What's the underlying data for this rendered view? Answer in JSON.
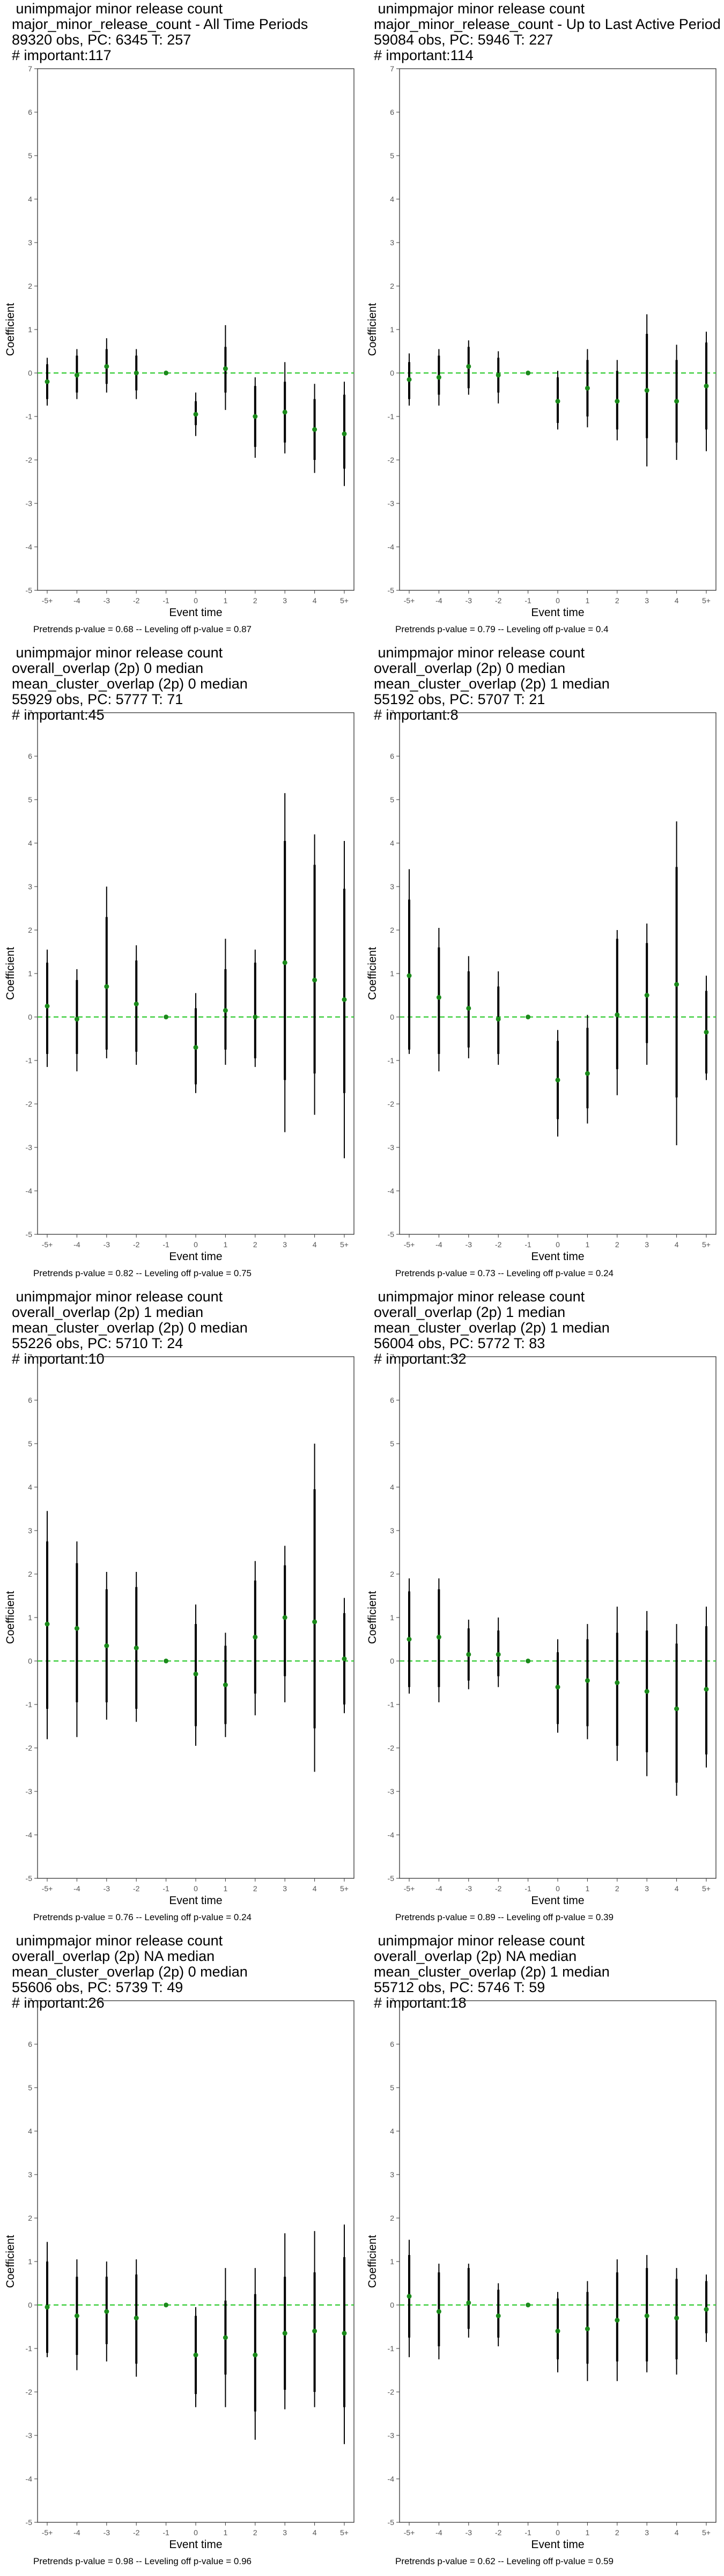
{
  "axis": {
    "xlabel": "Event time",
    "ylabel": "Coefficient",
    "x_ticks": [
      "-5+",
      "-4",
      "-3",
      "-2",
      "-1",
      "0",
      "1",
      "2",
      "3",
      "4",
      "5+"
    ],
    "y_ticks": [
      -5,
      -4,
      -3,
      -2,
      -1,
      0,
      1,
      2,
      3,
      4,
      5,
      6,
      7
    ],
    "ylim": [
      -5,
      7
    ]
  },
  "colors": {
    "point": "#1a8a1a",
    "reference_line": "#33cc33",
    "bar": "#000000",
    "frame": "#333333"
  },
  "chart_data": [
    {
      "type": "scatter",
      "header": [
        " unimpmajor minor release count",
        "major_minor_release_count - All Time Periods",
        "89320 obs, PC: 6345 T: 257",
        "# important:117"
      ],
      "footer": "Pretrends p-value = 0.68 -- Leveling off p-value = 0.87",
      "x": [
        "-5+",
        "-4",
        "-3",
        "-2",
        "-1",
        "0",
        "1",
        "2",
        "3",
        "4",
        "5+"
      ],
      "coef": [
        -0.2,
        -0.05,
        0.15,
        0.0,
        0.0,
        -0.95,
        0.1,
        -1.0,
        -0.9,
        -1.3,
        -1.4
      ],
      "ci90": [
        [
          -0.6,
          0.2
        ],
        [
          -0.45,
          0.4
        ],
        [
          -0.25,
          0.55
        ],
        [
          -0.4,
          0.4
        ],
        [
          0.0,
          0.0
        ],
        [
          -1.2,
          -0.65
        ],
        [
          -0.45,
          0.6
        ],
        [
          -1.7,
          -0.3
        ],
        [
          -1.6,
          -0.2
        ],
        [
          -2.0,
          -0.6
        ],
        [
          -2.2,
          -0.5
        ]
      ],
      "ci95": [
        [
          -0.75,
          0.35
        ],
        [
          -0.6,
          0.55
        ],
        [
          -0.45,
          0.8
        ],
        [
          -0.6,
          0.55
        ],
        [
          0.0,
          0.0
        ],
        [
          -1.45,
          -0.45
        ],
        [
          -0.85,
          1.1
        ],
        [
          -1.95,
          -0.1
        ],
        [
          -1.85,
          0.25
        ],
        [
          -2.3,
          -0.25
        ],
        [
          -2.6,
          -0.2
        ]
      ]
    },
    {
      "type": "scatter",
      "header": [
        " unimpmajor minor release count",
        "major_minor_release_count - Up to Last Active Period",
        "59084 obs, PC: 5946 T: 227",
        "# important:114"
      ],
      "footer": "Pretrends p-value = 0.79 -- Leveling off p-value = 0.4",
      "x": [
        "-5+",
        "-4",
        "-3",
        "-2",
        "-1",
        "0",
        "1",
        "2",
        "3",
        "4",
        "5+"
      ],
      "coef": [
        -0.15,
        -0.1,
        0.15,
        -0.05,
        0.0,
        -0.65,
        -0.35,
        -0.65,
        -0.4,
        -0.65,
        -0.3
      ],
      "ci90": [
        [
          -0.6,
          0.25
        ],
        [
          -0.5,
          0.4
        ],
        [
          -0.35,
          0.6
        ],
        [
          -0.45,
          0.35
        ],
        [
          0.0,
          0.0
        ],
        [
          -1.15,
          -0.1
        ],
        [
          -1.0,
          0.3
        ],
        [
          -1.3,
          0.05
        ],
        [
          -1.5,
          0.9
        ],
        [
          -1.6,
          0.3
        ],
        [
          -1.3,
          0.7
        ]
      ],
      "ci95": [
        [
          -0.75,
          0.45
        ],
        [
          -0.75,
          0.55
        ],
        [
          -0.5,
          0.75
        ],
        [
          -0.7,
          0.5
        ],
        [
          0.0,
          0.0
        ],
        [
          -1.3,
          0.05
        ],
        [
          -1.25,
          0.55
        ],
        [
          -1.55,
          0.3
        ],
        [
          -2.15,
          1.35
        ],
        [
          -2.0,
          0.65
        ],
        [
          -1.8,
          0.95
        ]
      ]
    },
    {
      "type": "scatter",
      "header": [
        " unimpmajor minor release count",
        "overall_overlap (2p) 0 median",
        "mean_cluster_overlap (2p) 0 median",
        "55929 obs, PC: 5777 T: 71",
        "# important:45"
      ],
      "footer": "Pretrends p-value = 0.82 -- Leveling off p-value = 0.75",
      "x": [
        "-5+",
        "-4",
        "-3",
        "-2",
        "-1",
        "0",
        "1",
        "2",
        "3",
        "4",
        "5+"
      ],
      "coef": [
        0.25,
        -0.05,
        0.7,
        0.3,
        0.0,
        -0.7,
        0.15,
        0.0,
        1.25,
        0.85,
        0.4
      ],
      "ci90": [
        [
          -0.85,
          1.25
        ],
        [
          -0.85,
          0.85
        ],
        [
          -0.75,
          2.3
        ],
        [
          -0.8,
          1.3
        ],
        [
          0.0,
          0.0
        ],
        [
          -1.55,
          0.2
        ],
        [
          -0.75,
          1.1
        ],
        [
          -0.95,
          1.25
        ],
        [
          -1.45,
          4.05
        ],
        [
          -1.3,
          3.5
        ],
        [
          -1.75,
          2.95
        ]
      ],
      "ci95": [
        [
          -1.15,
          1.55
        ],
        [
          -1.25,
          1.1
        ],
        [
          -0.95,
          3.0
        ],
        [
          -1.1,
          1.65
        ],
        [
          0.0,
          0.0
        ],
        [
          -1.75,
          0.55
        ],
        [
          -1.1,
          1.8
        ],
        [
          -1.15,
          1.55
        ],
        [
          -2.65,
          5.15
        ],
        [
          -2.25,
          4.2
        ],
        [
          -3.25,
          4.05
        ]
      ]
    },
    {
      "type": "scatter",
      "header": [
        " unimpmajor minor release count",
        "overall_overlap (2p) 0 median",
        "mean_cluster_overlap (2p) 1 median",
        "55192 obs, PC: 5707 T: 21",
        "# important:8"
      ],
      "footer": "Pretrends p-value = 0.73 -- Leveling off p-value = 0.24",
      "x": [
        "-5+",
        "-4",
        "-3",
        "-2",
        "-1",
        "0",
        "1",
        "2",
        "3",
        "4",
        "5+"
      ],
      "coef": [
        0.95,
        0.45,
        0.2,
        -0.05,
        0.0,
        -1.45,
        -1.3,
        0.05,
        0.5,
        0.75,
        -0.35
      ],
      "ci90": [
        [
          -0.75,
          2.7
        ],
        [
          -0.85,
          1.6
        ],
        [
          -0.7,
          1.05
        ],
        [
          -0.85,
          0.7
        ],
        [
          0.0,
          0.0
        ],
        [
          -2.35,
          -0.55
        ],
        [
          -2.1,
          -0.25
        ],
        [
          -1.2,
          1.8
        ],
        [
          -0.6,
          1.7
        ],
        [
          -1.85,
          3.45
        ],
        [
          -1.3,
          0.6
        ]
      ],
      "ci95": [
        [
          -0.85,
          3.4
        ],
        [
          -1.25,
          2.05
        ],
        [
          -0.95,
          1.4
        ],
        [
          -1.1,
          1.05
        ],
        [
          0.0,
          0.0
        ],
        [
          -2.75,
          -0.3
        ],
        [
          -2.45,
          0.05
        ],
        [
          -1.8,
          2.0
        ],
        [
          -1.1,
          2.15
        ],
        [
          -2.95,
          4.5
        ],
        [
          -1.45,
          0.95
        ]
      ]
    },
    {
      "type": "scatter",
      "header": [
        " unimpmajor minor release count",
        "overall_overlap (2p) 1 median",
        "mean_cluster_overlap (2p) 0 median",
        "55226 obs, PC: 5710 T: 24",
        "# important:10"
      ],
      "footer": "Pretrends p-value = 0.76 -- Leveling off p-value = 0.24",
      "x": [
        "-5+",
        "-4",
        "-3",
        "-2",
        "-1",
        "0",
        "1",
        "2",
        "3",
        "4",
        "5+"
      ],
      "coef": [
        0.85,
        0.75,
        0.35,
        0.3,
        0.0,
        -0.3,
        -0.55,
        0.55,
        1.0,
        0.9,
        0.05
      ],
      "ci90": [
        [
          -1.1,
          2.75
        ],
        [
          -0.95,
          2.25
        ],
        [
          -0.95,
          1.65
        ],
        [
          -1.1,
          1.7
        ],
        [
          0.0,
          0.0
        ],
        [
          -1.5,
          0.85
        ],
        [
          -1.45,
          0.35
        ],
        [
          -0.75,
          1.85
        ],
        [
          -0.35,
          2.2
        ],
        [
          -1.55,
          3.95
        ],
        [
          -1.0,
          1.1
        ]
      ],
      "ci95": [
        [
          -1.8,
          3.45
        ],
        [
          -1.75,
          2.75
        ],
        [
          -1.35,
          2.05
        ],
        [
          -1.4,
          2.05
        ],
        [
          0.0,
          0.0
        ],
        [
          -1.95,
          1.3
        ],
        [
          -1.75,
          0.65
        ],
        [
          -1.25,
          2.3
        ],
        [
          -0.95,
          2.65
        ],
        [
          -2.55,
          5.0
        ],
        [
          -1.2,
          1.45
        ]
      ]
    },
    {
      "type": "scatter",
      "header": [
        " unimpmajor minor release count",
        "overall_overlap (2p) 1 median",
        "mean_cluster_overlap (2p) 1 median",
        "56004 obs, PC: 5772 T: 83",
        "# important:32"
      ],
      "footer": "Pretrends p-value = 0.89 -- Leveling off p-value = 0.39",
      "x": [
        "-5+",
        "-4",
        "-3",
        "-2",
        "-1",
        "0",
        "1",
        "2",
        "3",
        "4",
        "5+"
      ],
      "coef": [
        0.5,
        0.55,
        0.15,
        0.15,
        0.0,
        -0.6,
        -0.45,
        -0.5,
        -0.7,
        -1.1,
        -0.65
      ],
      "ci90": [
        [
          -0.6,
          1.6
        ],
        [
          -0.6,
          1.65
        ],
        [
          -0.45,
          0.75
        ],
        [
          -0.35,
          0.7
        ],
        [
          0.0,
          0.0
        ],
        [
          -1.45,
          0.2
        ],
        [
          -1.5,
          0.5
        ],
        [
          -1.95,
          0.65
        ],
        [
          -2.1,
          0.7
        ],
        [
          -2.8,
          0.4
        ],
        [
          -2.15,
          0.8
        ]
      ],
      "ci95": [
        [
          -0.75,
          1.9
        ],
        [
          -0.95,
          1.9
        ],
        [
          -0.65,
          0.95
        ],
        [
          -0.6,
          1.0
        ],
        [
          0.0,
          0.0
        ],
        [
          -1.65,
          0.5
        ],
        [
          -1.8,
          0.85
        ],
        [
          -2.3,
          1.25
        ],
        [
          -2.65,
          1.15
        ],
        [
          -3.1,
          0.85
        ],
        [
          -2.45,
          1.25
        ]
      ]
    },
    {
      "type": "scatter",
      "header": [
        " unimpmajor minor release count",
        "overall_overlap (2p) NA median",
        "mean_cluster_overlap (2p) 0 median",
        "55606 obs, PC: 5739 T: 49",
        "# important:26"
      ],
      "footer": "Pretrends p-value = 0.98 -- Leveling off p-value = 0.96",
      "x": [
        "-5+",
        "-4",
        "-3",
        "-2",
        "-1",
        "0",
        "1",
        "2",
        "3",
        "4",
        "5+"
      ],
      "coef": [
        -0.05,
        -0.25,
        -0.15,
        -0.3,
        0.0,
        -1.15,
        -0.75,
        -1.15,
        -0.65,
        -0.6,
        -0.65
      ],
      "ci90": [
        [
          -1.1,
          1.0
        ],
        [
          -1.15,
          0.65
        ],
        [
          -0.9,
          0.65
        ],
        [
          -1.35,
          0.7
        ],
        [
          0.0,
          0.0
        ],
        [
          -2.05,
          -0.25
        ],
        [
          -1.6,
          0.1
        ],
        [
          -2.45,
          0.25
        ],
        [
          -1.95,
          0.65
        ],
        [
          -2.0,
          0.75
        ],
        [
          -2.35,
          1.1
        ]
      ],
      "ci95": [
        [
          -1.2,
          1.45
        ],
        [
          -1.5,
          1.05
        ],
        [
          -1.3,
          1.0
        ],
        [
          -1.65,
          1.05
        ],
        [
          0.0,
          0.0
        ],
        [
          -2.35,
          -0.05
        ],
        [
          -2.35,
          0.85
        ],
        [
          -3.1,
          0.85
        ],
        [
          -2.4,
          1.65
        ],
        [
          -2.35,
          1.7
        ],
        [
          -3.2,
          1.85
        ]
      ]
    },
    {
      "type": "scatter",
      "header": [
        " unimpmajor minor release count",
        "overall_overlap (2p) NA median",
        "mean_cluster_overlap (2p) 1 median",
        "55712 obs, PC: 5746 T: 59",
        "# important:18"
      ],
      "footer": "Pretrends p-value = 0.62 -- Leveling off p-value = 0.59",
      "x": [
        "-5+",
        "-4",
        "-3",
        "-2",
        "-1",
        "0",
        "1",
        "2",
        "3",
        "4",
        "5+"
      ],
      "coef": [
        0.2,
        -0.15,
        0.05,
        -0.25,
        0.0,
        -0.6,
        -0.55,
        -0.35,
        -0.25,
        -0.3,
        -0.1
      ],
      "ci90": [
        [
          -0.75,
          1.15
        ],
        [
          -0.95,
          0.75
        ],
        [
          -0.55,
          0.85
        ],
        [
          -0.75,
          0.35
        ],
        [
          0.0,
          0.0
        ],
        [
          -1.25,
          0.15
        ],
        [
          -1.35,
          0.3
        ],
        [
          -1.3,
          0.75
        ],
        [
          -1.3,
          0.85
        ],
        [
          -1.25,
          0.6
        ],
        [
          -0.65,
          0.55
        ]
      ],
      "ci95": [
        [
          -1.2,
          1.5
        ],
        [
          -1.25,
          0.95
        ],
        [
          -0.75,
          0.95
        ],
        [
          -0.95,
          0.5
        ],
        [
          0.0,
          0.0
        ],
        [
          -1.55,
          0.3
        ],
        [
          -1.75,
          0.55
        ],
        [
          -1.75,
          1.05
        ],
        [
          -1.55,
          1.15
        ],
        [
          -1.6,
          0.85
        ],
        [
          -0.85,
          0.7
        ]
      ]
    }
  ]
}
